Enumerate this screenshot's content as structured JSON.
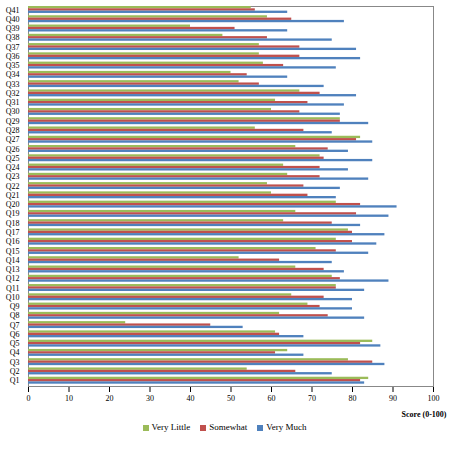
{
  "chart_data": {
    "type": "bar",
    "orientation": "horizontal",
    "legend": "bottom",
    "grid": false,
    "x_label": "Score (0-100)",
    "categories": [
      "Q1",
      "Q2",
      "Q3",
      "Q4",
      "Q5",
      "Q6",
      "Q7",
      "Q8",
      "Q9",
      "Q10",
      "Q11",
      "Q12",
      "Q13",
      "Q14",
      "Q15",
      "Q16",
      "Q17",
      "Q18",
      "Q19",
      "Q20",
      "Q21",
      "Q22",
      "Q23",
      "Q24",
      "Q25",
      "Q26",
      "Q27",
      "Q28",
      "Q29",
      "Q30",
      "Q31",
      "Q32",
      "Q33",
      "Q34",
      "Q35",
      "Q36",
      "Q37",
      "Q38",
      "Q39",
      "Q40",
      "Q41"
    ],
    "series": [
      {
        "name": "Very Little",
        "color": "#9bbb59",
        "values": [
          84,
          54,
          79,
          64,
          85,
          61,
          24,
          62,
          69,
          65,
          76,
          75,
          66,
          52,
          71,
          76,
          79,
          63,
          66,
          76,
          60,
          59,
          64,
          63,
          72,
          66,
          82,
          56,
          77,
          60,
          61,
          67,
          52,
          50,
          58,
          57,
          57,
          48,
          40,
          59,
          55
        ]
      },
      {
        "name": "Somewhat",
        "color": "#c0504d",
        "values": [
          82,
          66,
          85,
          61,
          82,
          62,
          45,
          74,
          72,
          73,
          76,
          77,
          73,
          62,
          76,
          80,
          80,
          75,
          81,
          82,
          69,
          68,
          72,
          72,
          73,
          74,
          81,
          68,
          77,
          67,
          69,
          72,
          57,
          54,
          63,
          67,
          67,
          59,
          51,
          65,
          56
        ]
      },
      {
        "name": "Very Much",
        "color": "#4f81bd",
        "values": [
          83,
          75,
          88,
          68,
          87,
          68,
          53,
          83,
          80,
          80,
          83,
          89,
          78,
          75,
          84,
          86,
          88,
          82,
          89,
          91,
          76,
          77,
          84,
          79,
          85,
          79,
          85,
          75,
          84,
          77,
          78,
          81,
          73,
          64,
          76,
          82,
          81,
          75,
          64,
          78,
          64
        ]
      }
    ],
    "xlim": [
      0,
      100
    ],
    "xticks": [
      0,
      10,
      20,
      30,
      40,
      50,
      60,
      70,
      80,
      90,
      100
    ]
  }
}
